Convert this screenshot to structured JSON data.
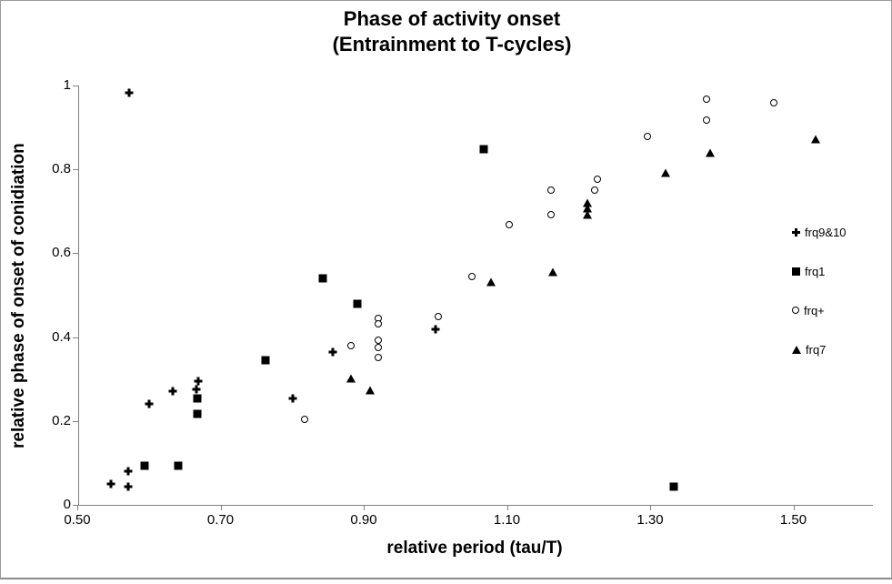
{
  "chart_data": {
    "type": "scatter",
    "title": "Phase of activity onset",
    "subtitle": "(Entrainment to T-cycles)",
    "xlabel": "relative period (tau/T)",
    "ylabel": "relative phase of onset of conidiation",
    "xlim": [
      0.5,
      1.61
    ],
    "ylim": [
      0,
      1
    ],
    "grid": false,
    "legend_position": "right",
    "xticks": {
      "values": [
        0.5,
        0.7,
        0.9,
        1.1,
        1.3,
        1.5
      ],
      "labels": [
        "0.50",
        "0.70",
        "0.90",
        "1.10",
        "1.30",
        "1.50"
      ]
    },
    "yticks": {
      "values": [
        0,
        0.2,
        0.4,
        0.6,
        0.8,
        1
      ],
      "labels": [
        "0",
        "0.2",
        "0.4",
        "0.6",
        "0.8",
        "1"
      ]
    },
    "series": [
      {
        "name": "frq9&10",
        "marker": "plus",
        "points": [
          [
            0.547,
            0.05
          ],
          [
            0.571,
            0.043
          ],
          [
            0.571,
            0.08
          ],
          [
            0.572,
            0.983
          ],
          [
            0.6,
            0.241
          ],
          [
            0.633,
            0.271
          ],
          [
            0.666,
            0.276
          ],
          [
            0.669,
            0.295
          ],
          [
            0.801,
            0.254
          ],
          [
            0.857,
            0.364
          ],
          [
            1.0,
            0.419
          ]
        ]
      },
      {
        "name": "frq1",
        "marker": "square",
        "points": [
          [
            0.594,
            0.093
          ],
          [
            0.641,
            0.093
          ],
          [
            0.668,
            0.254
          ],
          [
            0.668,
            0.217
          ],
          [
            0.763,
            0.345
          ],
          [
            0.843,
            0.54
          ],
          [
            0.891,
            0.479
          ],
          [
            1.068,
            0.848
          ],
          [
            1.333,
            0.043
          ]
        ]
      },
      {
        "name": "frq+",
        "marker": "circle",
        "points": [
          [
            0.817,
            0.204
          ],
          [
            0.882,
            0.38
          ],
          [
            0.92,
            0.445
          ],
          [
            0.92,
            0.432
          ],
          [
            0.92,
            0.393
          ],
          [
            0.92,
            0.375
          ],
          [
            0.92,
            0.351
          ],
          [
            1.004,
            0.449
          ],
          [
            1.051,
            0.545
          ],
          [
            1.103,
            0.668
          ],
          [
            1.162,
            0.751
          ],
          [
            1.162,
            0.692
          ],
          [
            1.223,
            0.751
          ],
          [
            1.226,
            0.777
          ],
          [
            1.296,
            0.879
          ],
          [
            1.379,
            0.968
          ],
          [
            1.379,
            0.918
          ],
          [
            1.473,
            0.959
          ]
        ]
      },
      {
        "name": "frq7",
        "marker": "triangle",
        "points": [
          [
            0.882,
            0.302
          ],
          [
            0.909,
            0.273
          ],
          [
            1.078,
            0.532
          ],
          [
            1.164,
            0.555
          ],
          [
            1.212,
            0.72
          ],
          [
            1.212,
            0.707
          ],
          [
            1.212,
            0.692
          ],
          [
            1.321,
            0.792
          ],
          [
            1.384,
            0.84
          ],
          [
            1.531,
            0.872
          ]
        ]
      }
    ],
    "colors": {
      "marker": "#000000",
      "axis": "#808080",
      "frame_border": "#9b9b9b",
      "text": "#000000",
      "background": "#ffffff"
    }
  }
}
